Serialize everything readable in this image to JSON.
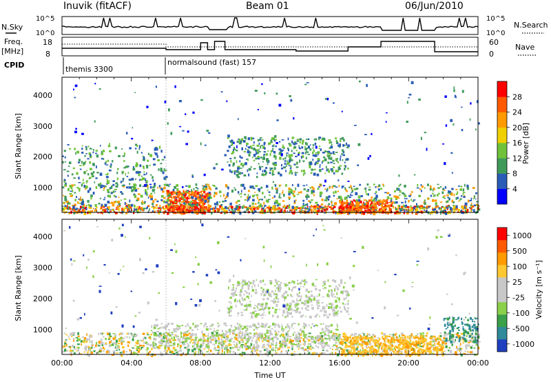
{
  "header": {
    "station": "Inuvik (fitACF)",
    "beam": "Beam 01",
    "date": "06/Jun/2010"
  },
  "status_panel": {
    "nsky_label": "N.Sky",
    "nsky_ticks": [
      "10^5",
      "10^0"
    ],
    "nsearch_label": "N.Search",
    "nsearch_ticks": [
      "10^5",
      "10^0"
    ],
    "freq_label_top": "Freq.",
    "freq_label_bottom": "[MHz]",
    "freq_ticks": [
      "18",
      "8"
    ],
    "nave_label": "Nave",
    "nave_ticks": [
      "60",
      "0"
    ],
    "cpid_label": "CPID",
    "cpid_segments": [
      {
        "start_hour": 0,
        "label": "themis 3300"
      },
      {
        "start_hour": 6,
        "label": "normalsound (fast) 157"
      }
    ]
  },
  "chart_data": [
    {
      "type": "heatmap",
      "name": "power",
      "ylabel": "Slant Range [km]",
      "yticks": [
        "1000",
        "2000",
        "3000",
        "4000"
      ],
      "ylim": [
        180,
        4500
      ],
      "xlim_hours": [
        0,
        24
      ],
      "colorbar_label": "Power [dB]",
      "colorbar_ticks": [
        "4",
        "8",
        "12",
        "16",
        "20",
        "24",
        "28"
      ],
      "colors": [
        "#0000ff",
        "#2a5cb8",
        "#3f9a5a",
        "#6fc23a",
        "#f0d000",
        "#ff9a00",
        "#ff5a00",
        "#ff0000"
      ]
    },
    {
      "type": "heatmap",
      "name": "velocity",
      "ylabel": "Slant Range [km]",
      "yticks": [
        "1000",
        "2000",
        "3000",
        "4000"
      ],
      "ylim": [
        180,
        4500
      ],
      "xlim_hours": [
        0,
        24
      ],
      "colorbar_label": "Velocity [m s⁻¹]",
      "colorbar_ticks": [
        "1000",
        "500",
        "100",
        "25",
        "-25",
        "-100",
        "-500",
        "-1000"
      ],
      "colors": [
        "#1f3fc0",
        "#2f8a9a",
        "#3aa04a",
        "#8ad04a",
        "#c8c8c8",
        "#c8c8c8",
        "#ffc830",
        "#ff9a00",
        "#ff5a00",
        "#ff0000"
      ]
    }
  ],
  "xaxis": {
    "label": "Time UT",
    "ticks": [
      "00:00",
      "04:00",
      "08:00",
      "12:00",
      "16:00",
      "20:00",
      "00:00"
    ]
  }
}
